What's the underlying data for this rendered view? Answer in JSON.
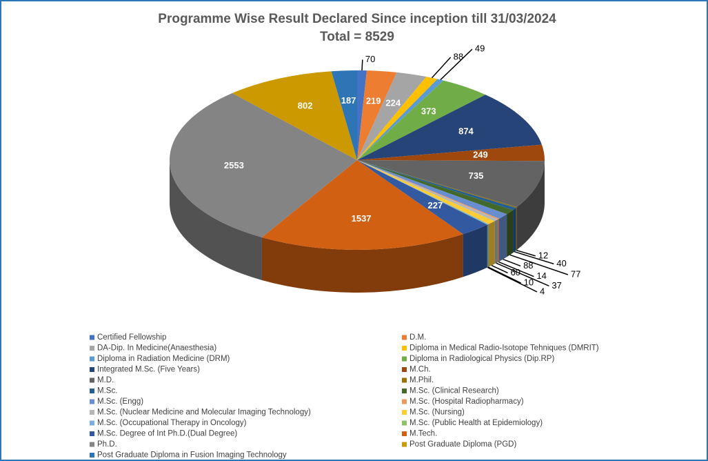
{
  "chart_data": {
    "type": "pie3d",
    "title": "Programme Wise Result Declared Since inception till 31/03/2024",
    "subtitle": "Total = 8529",
    "categories": [
      "Certified Fellowship",
      "D.M.",
      "DA-Dip. In Medicine(Anaesthesia)",
      "Diploma in Medical Radio-Isotope Tehniques (DMRIT)",
      "Diploma in Radiation Medicine (DRM)",
      "Diploma in Radiological Physics (Dip.RP)",
      "Integrated M.Sc. (Five Years)",
      "M.Ch.",
      "M.D.",
      "M.Phil.",
      "M.Sc.",
      "M.Sc. (Clinical Research)",
      "M.Sc. (Engg)",
      "M.Sc. (Hospital Radiopharmacy)",
      "M.Sc. (Nuclear Medicine and Molecular Imaging Technology)",
      "M.Sc. (Nursing)",
      "M.Sc. (Occupational Therapy in Oncology)",
      "M.Sc. (Public Health at Epidemiology)",
      "M.Sc. Degree of  Int Ph.D.(Dual Degree)",
      "M.Tech.",
      "Ph.D.",
      "Post Graduate Diploma (PGD)",
      "Post Graduate Diploma in Fusion Imaging Technology"
    ],
    "values": [
      70,
      219,
      224,
      88,
      49,
      373,
      874,
      249,
      735,
      12,
      40,
      77,
      88,
      14,
      37,
      60,
      10,
      4,
      227,
      1537,
      2553,
      802,
      187
    ],
    "colors": [
      "#4472c4",
      "#ed7d31",
      "#a5a5a5",
      "#ffc000",
      "#5b9bd5",
      "#70ad47",
      "#264478",
      "#9e480e",
      "#636363",
      "#997300",
      "#255e91",
      "#43682b",
      "#698ed0",
      "#f1975a",
      "#b7b7b7",
      "#ffcd33",
      "#7cafdd",
      "#8cc168",
      "#335aa1",
      "#d26012",
      "#848484",
      "#cc9a00",
      "#2e75b6"
    ],
    "legend": "bottom"
  }
}
